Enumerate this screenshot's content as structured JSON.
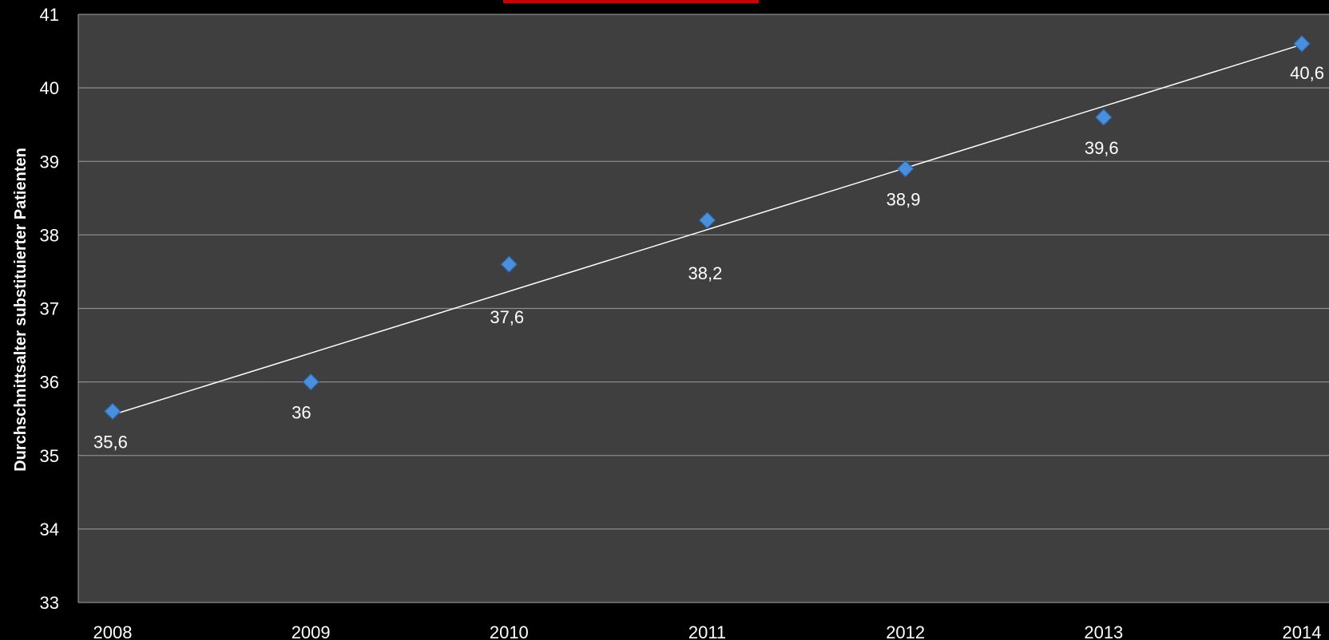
{
  "colors": {
    "background": "#000000",
    "plot_area": "#3f3f3f",
    "gridline": "#8c8c8c",
    "marker": "#4a8fdb",
    "marker_edge": "#2b63a8",
    "trendline": "#ffffff",
    "title_underline": "#cc0000"
  },
  "chart_data": {
    "type": "scatter",
    "title": "",
    "xlabel": "",
    "ylabel": "Durchschnittsalter  substituierter Patienten",
    "xlim": [
      2008,
      2014
    ],
    "ylim": [
      33,
      41
    ],
    "x_ticks": [
      "2008",
      "2009",
      "2010",
      "2011",
      "2012",
      "2013",
      "2014"
    ],
    "y_ticks": [
      "33",
      "34",
      "35",
      "36",
      "37",
      "38",
      "39",
      "40",
      "41"
    ],
    "grid": true,
    "legend": "none",
    "trendline": "linear",
    "series": [
      {
        "x": [
          2008,
          2009,
          2010,
          2011,
          2012,
          2013,
          2014
        ],
        "y": [
          35.6,
          36,
          37.6,
          38.2,
          38.9,
          39.6,
          40.6
        ],
        "labels": [
          "35,6",
          "36",
          "37,6",
          "38,2",
          "38,9",
          "39,6",
          "40,6"
        ]
      }
    ]
  }
}
